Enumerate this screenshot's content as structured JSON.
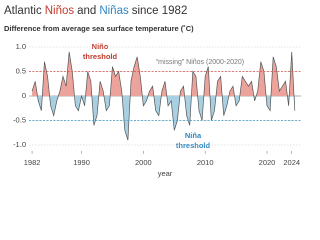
{
  "chart_data": {
    "type": "area",
    "title": [
      {
        "text": "Atlantic",
        "color": "#333333"
      },
      {
        "text": "Niños",
        "color": "#c0392b"
      },
      {
        "text": "and",
        "color": "#333333"
      },
      {
        "text": "Niñas",
        "color": "#2e86c1"
      },
      {
        "text": "since 1982",
        "color": "#333333"
      }
    ],
    "subtitle": "Difference from average sea surface temperature (˚C)",
    "xlabel": "year",
    "annotations": [
      {
        "lines": [
          "Niño",
          "threshold"
        ],
        "color": "#c0392b"
      },
      {
        "lines": [
          "“missing” Niños (2000-2020)"
        ],
        "color": "#777777"
      },
      {
        "lines": [
          "Niña",
          "threshold"
        ],
        "color": "#2e86c1"
      }
    ],
    "thresholds": [
      {
        "value": 0.5,
        "color": "#d9534f"
      },
      {
        "value": -0.5,
        "color": "#3a9cc4"
      }
    ],
    "x": [
      1982,
      1982.5,
      1983,
      1983.5,
      1984,
      1984.5,
      1985,
      1985.5,
      1986,
      1986.5,
      1987,
      1987.5,
      1988,
      1988.5,
      1989,
      1989.5,
      1990,
      1990.5,
      1991,
      1991.5,
      1992,
      1992.5,
      1993,
      1993.5,
      1994,
      1994.5,
      1995,
      1995.5,
      1996,
      1996.5,
      1997,
      1997.5,
      1998,
      1998.5,
      1999,
      1999.5,
      2000,
      2000.5,
      2001,
      2001.5,
      2002,
      2002.5,
      2003,
      2003.5,
      2004,
      2004.5,
      2005,
      2005.5,
      2006,
      2006.5,
      2007,
      2007.5,
      2008,
      2008.5,
      2009,
      2009.5,
      2010,
      2010.5,
      2011,
      2011.5,
      2012,
      2012.5,
      2013,
      2013.5,
      2014,
      2014.5,
      2015,
      2015.5,
      2016,
      2016.5,
      2017,
      2017.5,
      2018,
      2018.5,
      2019,
      2019.5,
      2020,
      2020.5,
      2021,
      2021.5,
      2022,
      2022.5,
      2023,
      2023.5,
      2024,
      2024.5
    ],
    "series": [
      {
        "color": "#555555",
        "pos_color": "#eba39c",
        "neg_color": "#a9d0e2",
        "values": [
          0.1,
          0.3,
          -0.1,
          -0.3,
          0.7,
          0.4,
          -0.2,
          -0.4,
          -0.1,
          0.1,
          0.4,
          0.2,
          0.9,
          0.5,
          -0.2,
          -0.3,
          0.0,
          -0.2,
          0.5,
          0.3,
          -0.6,
          -0.4,
          0.3,
          0.1,
          -0.3,
          -0.2,
          0.6,
          0.4,
          0.5,
          0.1,
          -0.7,
          -0.9,
          0.3,
          0.6,
          0.8,
          0.4,
          -0.2,
          -0.1,
          0.1,
          0.2,
          -0.3,
          -0.4,
          0.1,
          0.3,
          -0.2,
          -0.1,
          -0.7,
          -0.5,
          0.1,
          0.2,
          -0.4,
          -0.6,
          0.5,
          0.4,
          -0.3,
          -0.5,
          0.4,
          0.6,
          -0.5,
          -0.3,
          0.3,
          0.4,
          -0.4,
          -0.2,
          0.1,
          0.2,
          -0.2,
          -0.1,
          0.4,
          0.3,
          0.2,
          0.3,
          -0.1,
          0.1,
          0.7,
          0.5,
          -0.2,
          -0.3,
          0.8,
          0.6,
          0.1,
          0.2,
          0.3,
          -0.2,
          0.9,
          -0.3
        ]
      }
    ],
    "xlim": [
      1981.5,
      2025.5
    ],
    "ylim": [
      -1.1,
      1.2
    ],
    "xticks": [
      1982,
      1990,
      2000,
      2010,
      2020,
      2024
    ],
    "yticks": [
      {
        "value": 1,
        "label": "1.0"
      },
      0.5,
      0,
      -0.5,
      {
        "value": -1,
        "label": "-1.0"
      }
    ],
    "grid": true
  }
}
